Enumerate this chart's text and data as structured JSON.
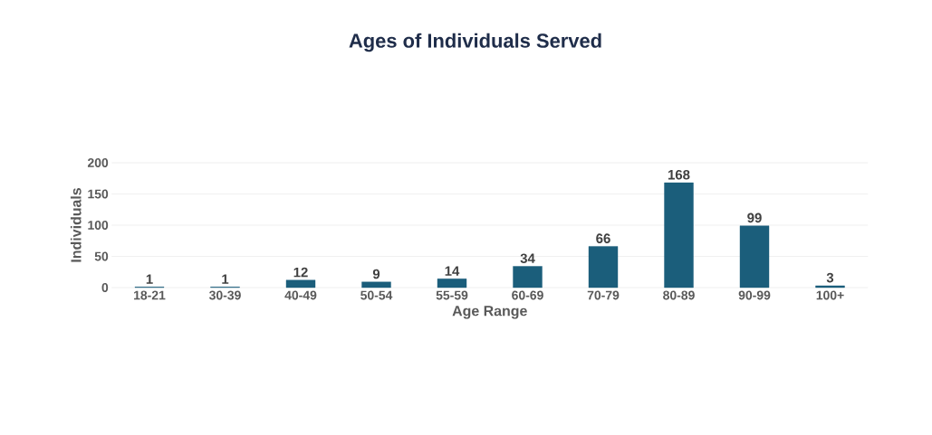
{
  "chart_data": {
    "type": "bar",
    "title": "Ages of Individuals Served",
    "xlabel": "Age Range",
    "ylabel": "Individuals",
    "categories": [
      "18-21",
      "30-39",
      "40-49",
      "50-54",
      "55-59",
      "60-69",
      "70-79",
      "80-89",
      "90-99",
      "100+"
    ],
    "values": [
      1,
      1,
      12,
      9,
      14,
      34,
      66,
      168,
      99,
      3
    ],
    "color": "#1b5e7b",
    "ylim": [
      0,
      200
    ],
    "yticks": [
      0,
      50,
      100,
      150,
      200
    ],
    "grid": "y",
    "data_labels": true
  }
}
